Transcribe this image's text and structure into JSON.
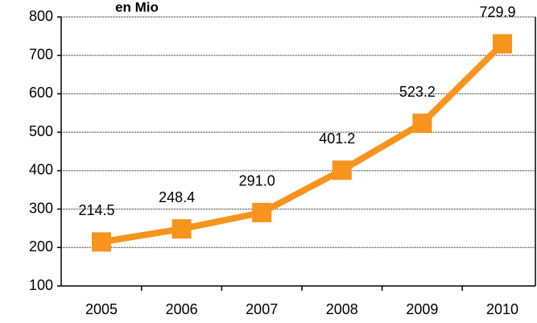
{
  "chart_data": {
    "type": "line",
    "title": "en Mio",
    "categories": [
      "2005",
      "2006",
      "2007",
      "2008",
      "2009",
      "2010"
    ],
    "series": [
      {
        "name": "en Mio",
        "color": "#f7941d",
        "values": [
          214.5,
          248.4,
          291.0,
          401.2,
          523.2,
          729.9
        ],
        "value_labels": [
          "214.5",
          "248.4",
          "291.0",
          "401.2",
          "523.2",
          "729.9"
        ]
      }
    ],
    "ylim": [
      100,
      800
    ],
    "yticks": [
      100,
      200,
      300,
      400,
      500,
      600,
      700,
      800
    ],
    "grid": true
  }
}
